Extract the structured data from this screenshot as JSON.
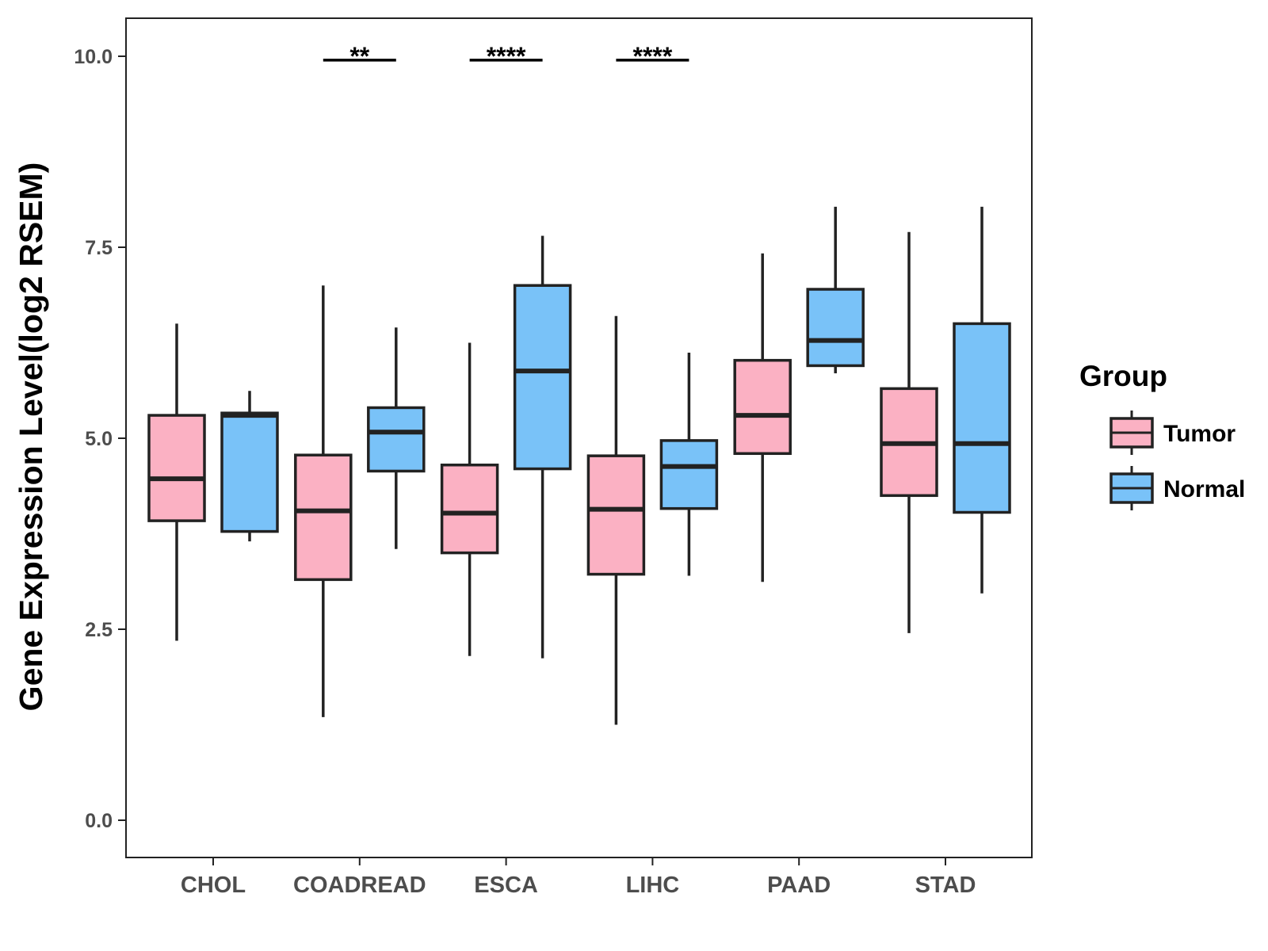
{
  "chart_data": {
    "type": "boxplot",
    "ylabel": "Gene Expression Level(log2 RSEM)",
    "xlabel": "",
    "ylim": [
      -0.5,
      10.5
    ],
    "yticks": [
      0.0,
      2.5,
      5.0,
      7.5,
      10.0
    ],
    "ytick_labels": [
      "0.0",
      "2.5",
      "5.0",
      "7.5",
      "10.0"
    ],
    "categories": [
      "CHOL",
      "COADREAD",
      "ESCA",
      "LIHC",
      "PAAD",
      "STAD"
    ],
    "legend": {
      "title": "Group",
      "position": "right",
      "entries": [
        "Tumor",
        "Normal"
      ]
    },
    "colors": {
      "Tumor": "#fbb1c3",
      "Normal": "#79c2f8",
      "outline": "#222222"
    },
    "series": [
      {
        "name": "Tumor",
        "boxes": [
          {
            "category": "CHOL",
            "whisker_low": 2.35,
            "q1": 3.92,
            "median": 4.47,
            "q3": 5.3,
            "whisker_high": 6.5
          },
          {
            "category": "COADREAD",
            "whisker_low": 1.35,
            "q1": 3.15,
            "median": 4.05,
            "q3": 4.78,
            "whisker_high": 7.0
          },
          {
            "category": "ESCA",
            "whisker_low": 2.15,
            "q1": 3.5,
            "median": 4.02,
            "q3": 4.65,
            "whisker_high": 6.25
          },
          {
            "category": "LIHC",
            "whisker_low": 1.25,
            "q1": 3.22,
            "median": 4.07,
            "q3": 4.77,
            "whisker_high": 6.6
          },
          {
            "category": "PAAD",
            "whisker_low": 3.12,
            "q1": 4.8,
            "median": 5.3,
            "q3": 6.02,
            "whisker_high": 7.42
          },
          {
            "category": "STAD",
            "whisker_low": 2.45,
            "q1": 4.25,
            "median": 4.93,
            "q3": 5.65,
            "whisker_high": 7.7
          }
        ]
      },
      {
        "name": "Normal",
        "boxes": [
          {
            "category": "CHOL",
            "whisker_low": 3.65,
            "q1": 3.78,
            "median": 5.3,
            "q3": 5.33,
            "whisker_high": 5.62
          },
          {
            "category": "COADREAD",
            "whisker_low": 3.55,
            "q1": 4.57,
            "median": 5.08,
            "q3": 5.4,
            "whisker_high": 6.45
          },
          {
            "category": "ESCA",
            "whisker_low": 2.12,
            "q1": 4.6,
            "median": 5.88,
            "q3": 7.0,
            "whisker_high": 7.65
          },
          {
            "category": "LIHC",
            "whisker_low": 3.2,
            "q1": 4.08,
            "median": 4.63,
            "q3": 4.97,
            "whisker_high": 6.12
          },
          {
            "category": "PAAD",
            "whisker_low": 5.85,
            "q1": 5.95,
            "median": 6.28,
            "q3": 6.95,
            "whisker_high": 8.03
          },
          {
            "category": "STAD",
            "whisker_low": 2.97,
            "q1": 4.03,
            "median": 4.93,
            "q3": 6.5,
            "whisker_high": 8.03
          }
        ]
      }
    ],
    "significance": [
      {
        "category": "COADREAD",
        "label": "**",
        "y": 9.95
      },
      {
        "category": "ESCA",
        "label": "****",
        "y": 9.95
      },
      {
        "category": "LIHC",
        "label": "****",
        "y": 9.95
      }
    ]
  }
}
